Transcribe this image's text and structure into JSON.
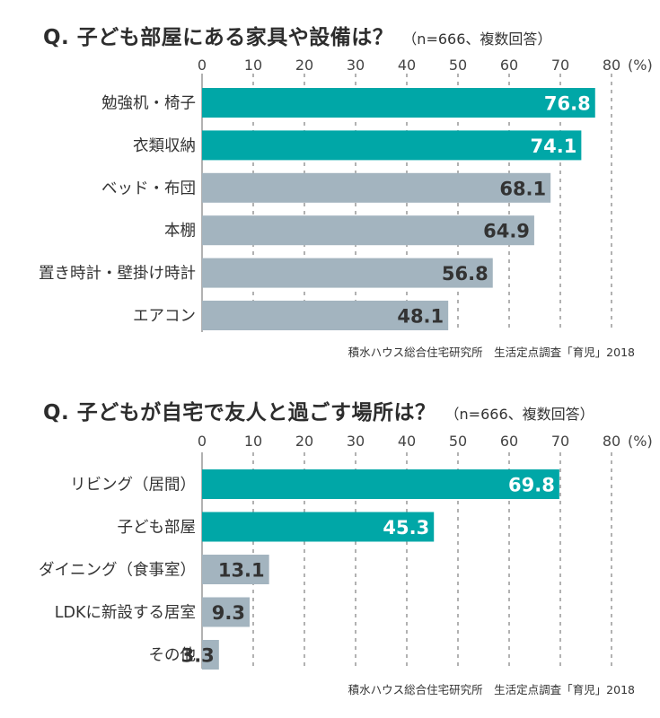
{
  "colors": {
    "highlight": "#00a7a7",
    "regular": "#a3b4bf",
    "grid": "#666666"
  },
  "chart_data": [
    {
      "type": "bar",
      "orientation": "horizontal",
      "title": "Q. 子ども部屋にある家具や設備は？",
      "note": "（n=666、複数回答）",
      "unit": "(%)",
      "xlim": [
        0,
        80
      ],
      "ticks": [
        "0",
        "10",
        "20",
        "30",
        "40",
        "50",
        "60",
        "70",
        "80"
      ],
      "categories": [
        "勉強机・椅子",
        "衣類収納",
        "ベッド・布団",
        "本棚",
        "置き時計・壁掛け時計",
        "エアコン"
      ],
      "values": [
        76.8,
        74.1,
        68.1,
        64.9,
        56.8,
        48.1
      ],
      "labels": [
        "76.8",
        "74.1",
        "68.1",
        "64.9",
        "56.8",
        "48.1"
      ],
      "highlighted": [
        true,
        true,
        false,
        false,
        false,
        false
      ],
      "grid": true,
      "source": "積水ハウス総合住宅研究所　生活定点調査「育児」2018"
    },
    {
      "type": "bar",
      "orientation": "horizontal",
      "title": "Q. 子どもが自宅で友人と過ごす場所は？",
      "note": "（n=666、複数回答）",
      "unit": "(%)",
      "xlim": [
        0,
        80
      ],
      "ticks": [
        "0",
        "10",
        "20",
        "30",
        "40",
        "50",
        "60",
        "70",
        "80"
      ],
      "categories": [
        "リビング（居間）",
        "子ども部屋",
        "ダイニング（食事室）",
        "LDKに新設する居室",
        "その他"
      ],
      "values": [
        69.8,
        45.3,
        13.1,
        9.3,
        3.3
      ],
      "labels": [
        "69.8",
        "45.3",
        "13.1",
        "9.3",
        "3.3"
      ],
      "highlighted": [
        true,
        true,
        false,
        false,
        false
      ],
      "grid": true,
      "source": "積水ハウス総合住宅研究所　生活定点調査「育児」2018"
    }
  ]
}
